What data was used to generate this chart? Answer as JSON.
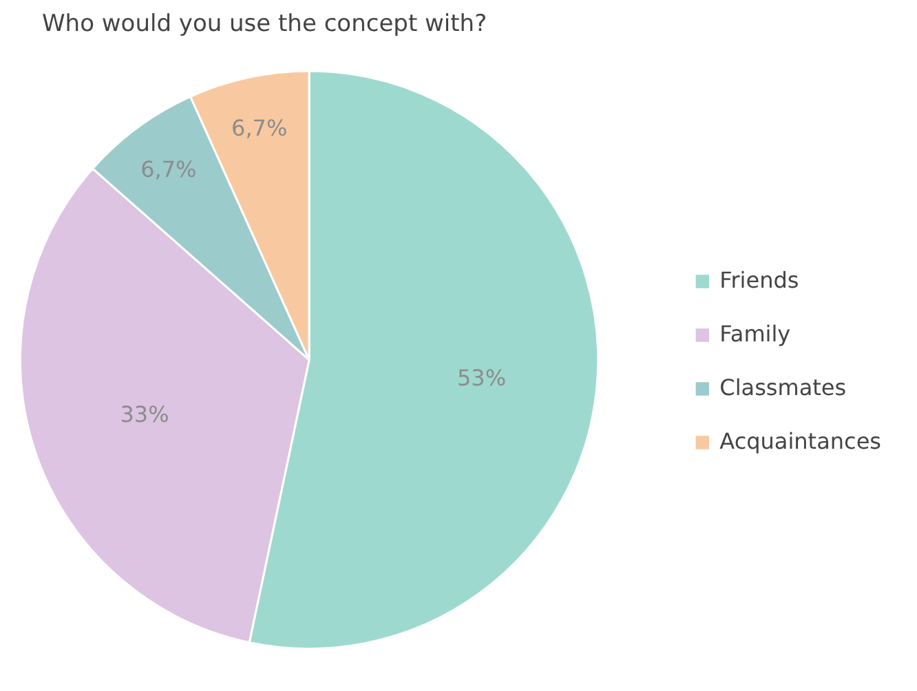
{
  "chart_data": {
    "type": "pie",
    "title": "Who would you use the concept with?",
    "categories": [
      "Friends",
      "Family",
      "Classmates",
      "Acquaintances"
    ],
    "values": [
      53,
      33,
      6.7,
      6.7
    ],
    "value_labels": [
      "53%",
      "33%",
      "6,7%",
      "6,7%"
    ],
    "colors": [
      "#9ed9cf",
      "#dcc4e2",
      "#9ccbcc",
      "#f8c9a0"
    ],
    "legend": "right"
  }
}
